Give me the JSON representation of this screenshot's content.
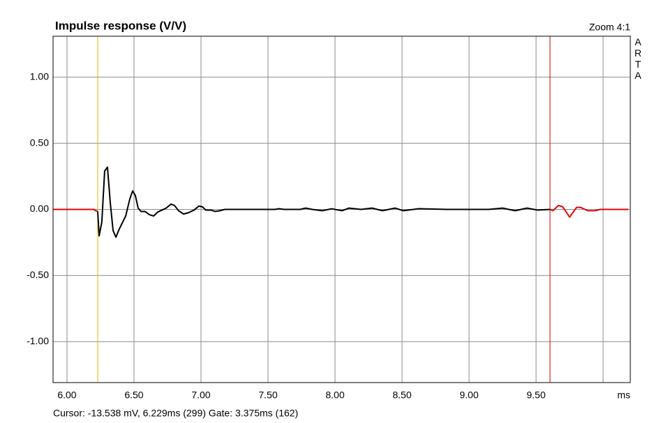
{
  "chart_data": {
    "type": "line",
    "title": "Impulse response (V/V)",
    "zoom_label": "Zoom 4:1",
    "side_label": "ARTA",
    "x_label": "ms",
    "status": "Cursor: -13.538 mV, 6.229ms (299)  Gate: 3.375ms (162)",
    "cursor_x": 6.229,
    "cursor_color": "#d4c000",
    "gate_end_x": 9.604,
    "gate_color": "#d00000",
    "grid": true,
    "xlim": [
      5.896,
      10.203
    ],
    "ylim": [
      -1.31,
      1.31
    ],
    "xticks": [
      {
        "value": 6,
        "label": "6.00"
      },
      {
        "value": 6.5,
        "label": "6.50"
      },
      {
        "value": 7,
        "label": "7.00"
      },
      {
        "value": 7.5,
        "label": "7.50"
      },
      {
        "value": 8,
        "label": "8.00"
      },
      {
        "value": 8.5,
        "label": "8.50"
      },
      {
        "value": 9,
        "label": "9.00"
      },
      {
        "value": 9.5,
        "label": "9.50"
      },
      {
        "value": 10
      }
    ],
    "yticks": [
      {
        "value": 1,
        "label": "1.00"
      },
      {
        "value": 0.5,
        "label": "0.50"
      },
      {
        "value": 0,
        "label": "0.00"
      },
      {
        "value": -0.5,
        "label": "-0.50"
      },
      {
        "value": -1,
        "label": "-1.00"
      }
    ],
    "x": [
      5.896,
      6.2,
      6.214,
      6.229,
      6.24,
      6.26,
      6.281,
      6.302,
      6.323,
      6.344,
      6.365,
      6.385,
      6.411,
      6.438,
      6.469,
      6.49,
      6.51,
      6.531,
      6.552,
      6.583,
      6.615,
      6.646,
      6.677,
      6.708,
      6.74,
      6.776,
      6.802,
      6.833,
      6.87,
      6.906,
      6.948,
      6.984,
      7.01,
      7.036,
      7.073,
      7.104,
      7.141,
      7.177,
      7.55,
      7.583,
      7.62,
      7.74,
      7.781,
      7.83,
      7.906,
      7.974,
      8.052,
      8.104,
      8.193,
      8.276,
      8.354,
      8.448,
      8.51,
      8.625,
      8.833,
      9.146,
      9.25,
      9.344,
      9.432,
      9.51,
      9.604,
      9.625,
      9.667,
      9.698,
      9.75,
      9.802,
      9.833,
      9.885,
      9.938,
      9.979,
      10.188
    ],
    "series": [
      {
        "color": "#000000",
        "values": [
          null,
          null,
          null,
          -0.014,
          -0.2,
          -0.095,
          0.29,
          0.32,
          0.05,
          -0.16,
          -0.21,
          -0.16,
          -0.105,
          -0.05,
          0.08,
          0.14,
          0.105,
          0.01,
          -0.016,
          -0.016,
          -0.04,
          -0.05,
          -0.02,
          -0.005,
          0.01,
          0.04,
          0.03,
          -0.01,
          -0.035,
          -0.025,
          -0.005,
          0.025,
          0.02,
          -0.005,
          -0.005,
          -0.015,
          -0.01,
          0,
          0,
          0.005,
          0,
          0,
          0.01,
          0,
          -0.01,
          0.005,
          -0.01,
          0.01,
          0,
          0.01,
          -0.01,
          0.01,
          -0.01,
          0.005,
          0,
          0,
          0.01,
          -0.01,
          0.01,
          -0.005,
          0,
          null,
          null,
          null,
          null,
          null,
          null,
          null,
          null,
          null,
          null
        ]
      },
      {
        "color": "#e00000",
        "values": [
          0,
          0,
          -0.01,
          -0.014,
          null,
          null,
          null,
          null,
          null,
          null,
          null,
          null,
          null,
          null,
          null,
          null,
          null,
          null,
          null,
          null,
          null,
          null,
          null,
          null,
          null,
          null,
          null,
          null,
          null,
          null,
          null,
          null,
          null,
          null,
          null,
          null,
          null,
          null,
          null,
          null,
          null,
          null,
          null,
          null,
          null,
          null,
          null,
          null,
          null,
          null,
          null,
          null,
          null,
          null,
          null,
          null,
          null,
          null,
          null,
          null,
          0,
          -0.01,
          0.03,
          0.02,
          -0.058,
          0.015,
          0.015,
          -0.01,
          -0.01,
          0,
          0
        ]
      }
    ]
  }
}
